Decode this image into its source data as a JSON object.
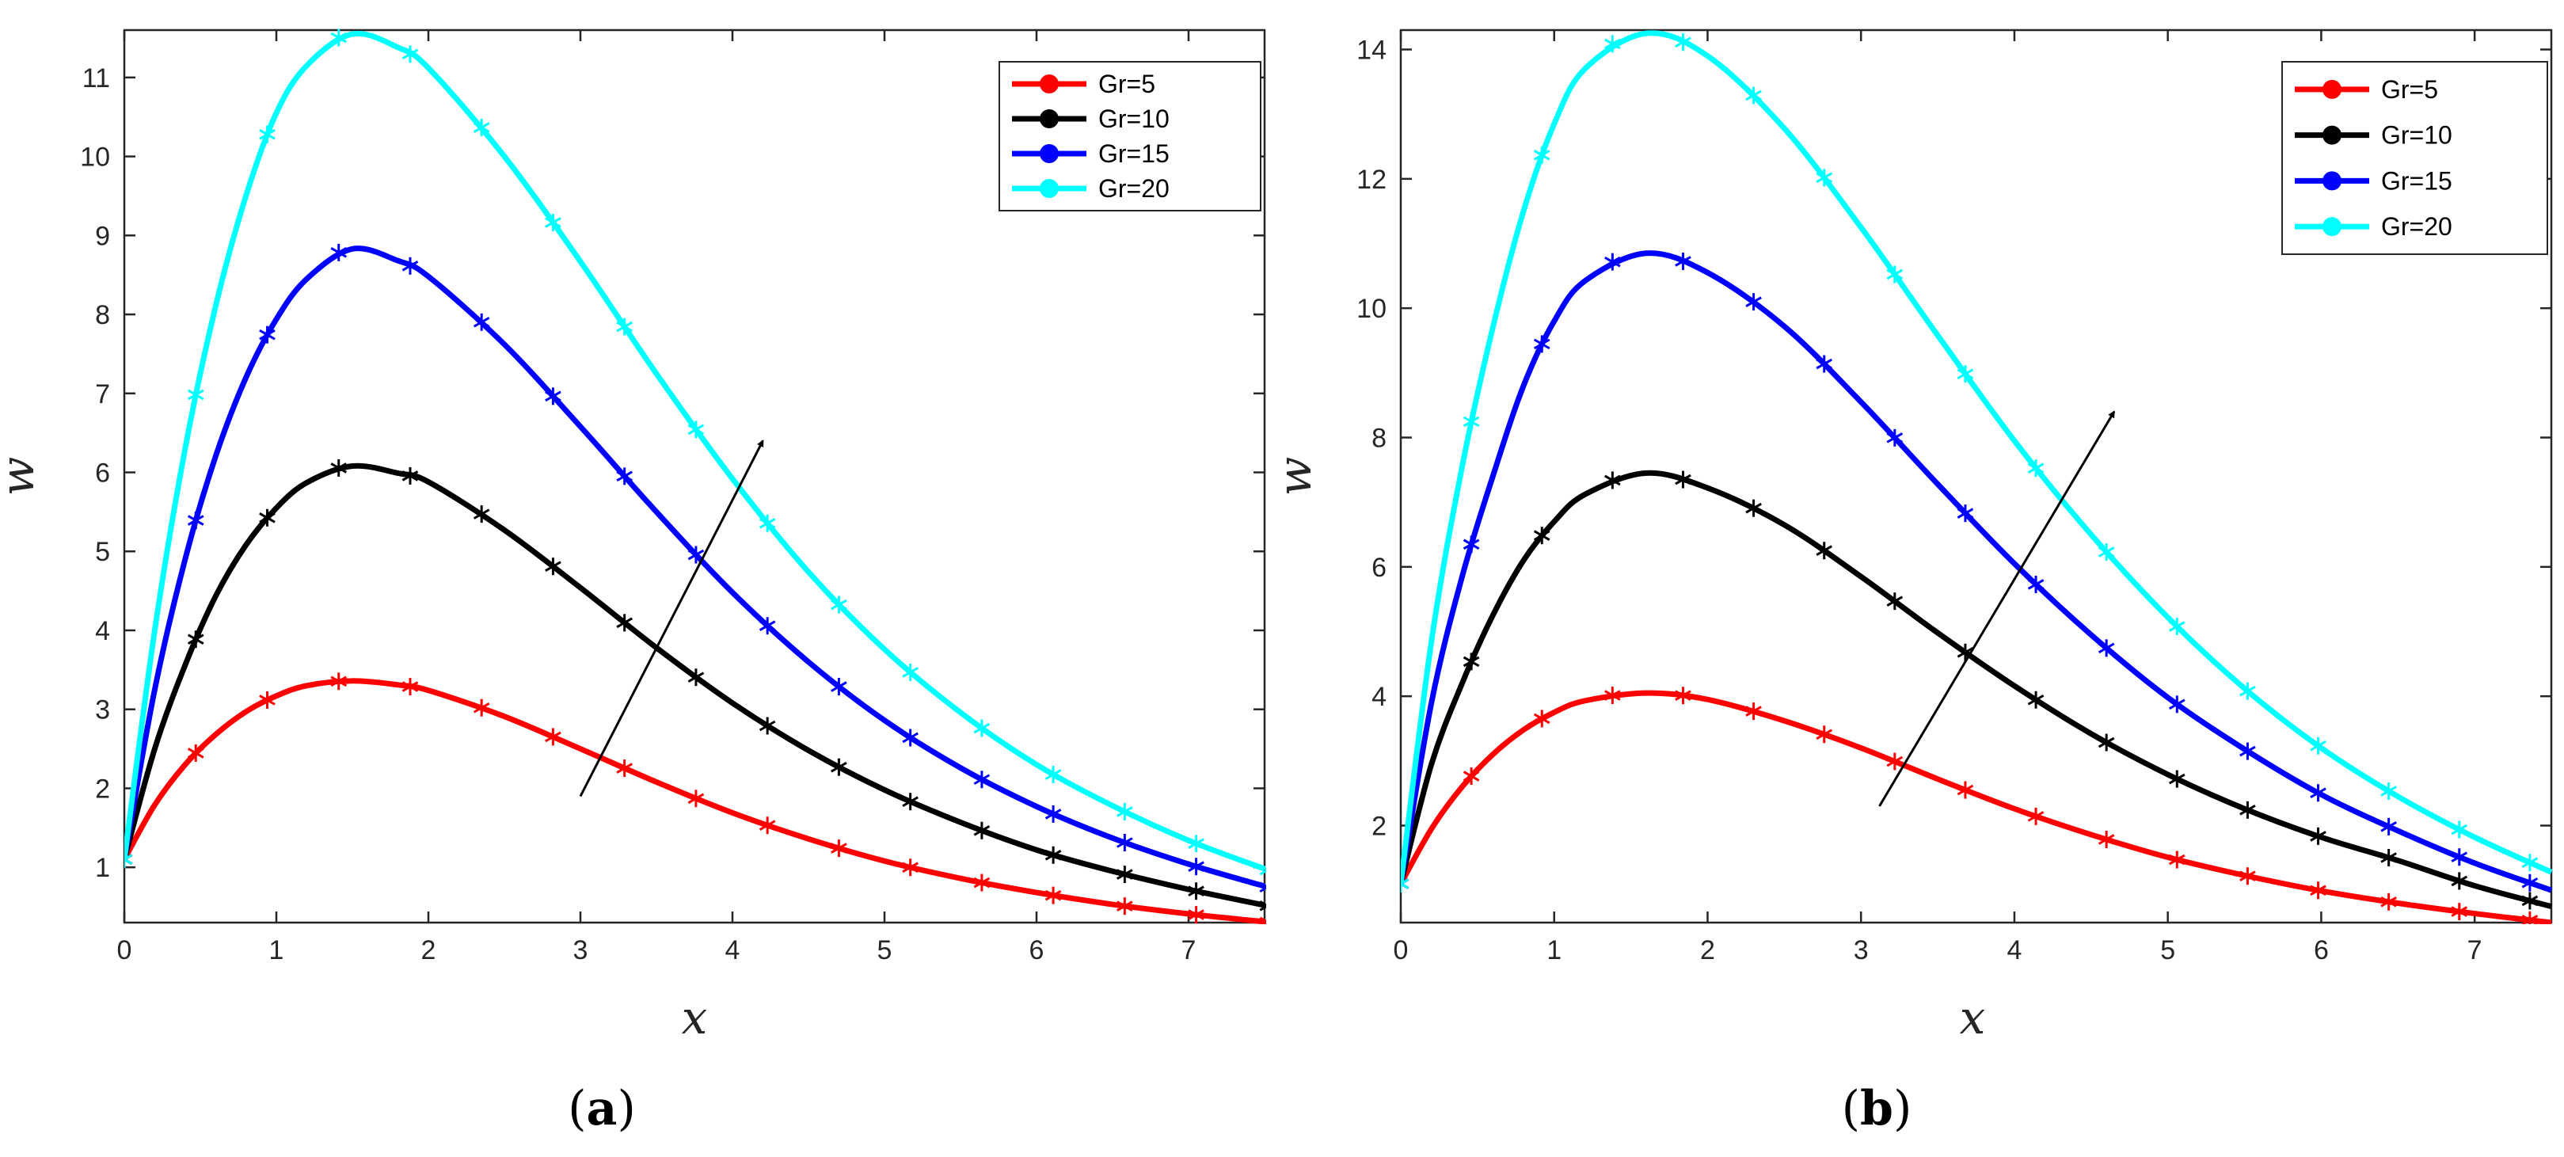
{
  "figure": {
    "panels": [
      {
        "id": "a",
        "label_open": "(",
        "label_letter": "a",
        "label_close": ")",
        "xlabel": "x",
        "ylabel": "w"
      },
      {
        "id": "b",
        "label_open": "(",
        "label_letter": "b",
        "label_close": ")",
        "xlabel": "x",
        "ylabel": "w"
      }
    ]
  },
  "chart_data": [
    {
      "type": "line",
      "panel": "a",
      "title": "",
      "xlabel": "x",
      "ylabel": "w",
      "xlim": [
        0,
        7.5
      ],
      "ylim": [
        0.3,
        11.6
      ],
      "xticks": [
        0,
        1,
        2,
        3,
        4,
        5,
        6,
        7
      ],
      "yticks": [
        1,
        2,
        3,
        4,
        5,
        6,
        7,
        8,
        9,
        10,
        11
      ],
      "grid": false,
      "legend_position": "top-right",
      "marker_x": [
        0,
        0.47,
        0.94,
        1.41,
        1.88,
        2.35,
        2.82,
        3.29,
        3.76,
        4.23,
        4.7,
        5.17,
        5.64,
        6.11,
        6.58,
        7.05,
        7.52
      ],
      "series": [
        {
          "name": "Gr=5",
          "color": "#ff0000",
          "peak_x": 1.48,
          "peak_y": 3.36,
          "x": [
            0,
            0.2,
            0.4,
            0.6,
            0.8,
            1.0,
            1.2,
            1.5,
            1.8,
            2.0,
            2.5,
            3.0,
            3.5,
            4.0,
            4.5,
            5.0,
            5.5,
            6.0,
            6.5,
            7.0,
            7.5
          ],
          "y": [
            1.1,
            1.79,
            2.3,
            2.68,
            2.97,
            3.17,
            3.3,
            3.36,
            3.31,
            3.24,
            2.91,
            2.5,
            2.08,
            1.69,
            1.36,
            1.08,
            0.86,
            0.68,
            0.53,
            0.41,
            0.31
          ]
        },
        {
          "name": "Gr=10",
          "color": "#000000",
          "peak_x": 1.5,
          "peak_y": 6.08,
          "x": [
            0,
            0.2,
            0.4,
            0.6,
            0.8,
            1.0,
            1.2,
            1.5,
            1.8,
            2.0,
            2.5,
            3.0,
            3.5,
            4.0,
            4.5,
            5.0,
            5.5,
            6.0,
            6.5,
            7.0,
            7.5
          ],
          "y": [
            1.1,
            2.5,
            3.56,
            4.43,
            5.08,
            5.55,
            5.87,
            6.08,
            5.99,
            5.88,
            5.27,
            4.54,
            3.78,
            3.08,
            2.48,
            1.98,
            1.57,
            1.22,
            0.95,
            0.72,
            0.52
          ]
        },
        {
          "name": "Gr=15",
          "color": "#0000ff",
          "peak_x": 1.52,
          "peak_y": 8.83,
          "x": [
            0,
            0.2,
            0.4,
            0.6,
            0.8,
            1.0,
            1.2,
            1.5,
            1.8,
            2.0,
            2.5,
            3.0,
            3.5,
            4.0,
            4.5,
            5.0,
            5.5,
            6.0,
            6.5,
            7.0,
            7.5
          ],
          "y": [
            1.1,
            3.25,
            4.9,
            6.2,
            7.2,
            7.94,
            8.45,
            8.83,
            8.68,
            8.48,
            7.62,
            6.58,
            5.5,
            4.48,
            3.6,
            2.86,
            2.26,
            1.77,
            1.37,
            1.04,
            0.76
          ]
        },
        {
          "name": "Gr=20",
          "color": "#00ffff",
          "peak_x": 1.53,
          "peak_y": 11.55,
          "x": [
            0,
            0.2,
            0.4,
            0.6,
            0.8,
            1.0,
            1.2,
            1.5,
            1.8,
            2.0,
            2.5,
            3.0,
            3.5,
            4.0,
            4.5,
            5.0,
            5.5,
            6.0,
            6.5,
            7.0,
            7.5
          ],
          "y": [
            1.1,
            4.0,
            6.3,
            8.1,
            9.5,
            10.55,
            11.15,
            11.55,
            11.38,
            11.12,
            10.0,
            8.67,
            7.25,
            5.92,
            4.74,
            3.76,
            2.96,
            2.3,
            1.78,
            1.34,
            0.98
          ]
        }
      ],
      "annotations": [
        {
          "type": "arrow",
          "from": [
            3.0,
            1.9
          ],
          "to": [
            4.2,
            6.4
          ],
          "color": "#000000"
        }
      ]
    },
    {
      "type": "line",
      "panel": "b",
      "title": "",
      "xlabel": "x",
      "ylabel": "w",
      "xlim": [
        0,
        7.5
      ],
      "ylim": [
        0.5,
        14.3
      ],
      "xticks": [
        0,
        1,
        2,
        3,
        4,
        5,
        6,
        7
      ],
      "yticks": [
        2,
        4,
        6,
        8,
        10,
        12,
        14
      ],
      "grid": false,
      "legend_position": "top-right",
      "marker_x": [
        0,
        0.46,
        0.92,
        1.38,
        1.84,
        2.3,
        2.76,
        3.22,
        3.68,
        4.14,
        4.6,
        5.06,
        5.52,
        5.98,
        6.44,
        6.9,
        7.36
      ],
      "series": [
        {
          "name": "Gr=5",
          "color": "#ff0000",
          "peak_x": 1.6,
          "peak_y": 4.05,
          "x": [
            0,
            0.2,
            0.4,
            0.6,
            0.8,
            1.0,
            1.2,
            1.6,
            2.0,
            2.5,
            3.0,
            3.5,
            4.0,
            4.5,
            5.0,
            5.5,
            6.0,
            6.5,
            7.0,
            7.5
          ],
          "y": [
            1.1,
            1.95,
            2.6,
            3.1,
            3.48,
            3.75,
            3.93,
            4.05,
            3.95,
            3.62,
            3.2,
            2.72,
            2.26,
            1.86,
            1.51,
            1.23,
            0.99,
            0.8,
            0.64,
            0.5
          ]
        },
        {
          "name": "Gr=10",
          "color": "#000000",
          "peak_x": 1.62,
          "peak_y": 7.45,
          "x": [
            0,
            0.2,
            0.4,
            0.6,
            0.8,
            1.0,
            1.2,
            1.6,
            2.0,
            2.5,
            3.0,
            3.5,
            4.0,
            4.5,
            5.0,
            5.5,
            6.0,
            6.5,
            7.0,
            7.5
          ],
          "y": [
            1.1,
            2.95,
            4.2,
            5.25,
            6.1,
            6.7,
            7.12,
            7.45,
            7.22,
            6.65,
            5.85,
            4.98,
            4.16,
            3.42,
            2.79,
            2.26,
            1.82,
            1.46,
            1.07,
            0.75
          ]
        },
        {
          "name": "Gr=15",
          "color": "#0000ff",
          "peak_x": 1.64,
          "peak_y": 10.85,
          "x": [
            0,
            0.2,
            0.4,
            0.6,
            0.8,
            1.0,
            1.2,
            1.6,
            2.0,
            2.5,
            3.0,
            3.5,
            4.0,
            4.5,
            5.0,
            5.5,
            6.0,
            6.5,
            7.0,
            7.5
          ],
          "y": [
            1.1,
            3.9,
            5.85,
            7.4,
            8.8,
            9.8,
            10.42,
            10.85,
            10.55,
            9.72,
            8.55,
            7.28,
            6.05,
            4.95,
            3.98,
            3.18,
            2.48,
            1.92,
            1.42,
            1.0
          ]
        },
        {
          "name": "Gr=20",
          "color": "#00ffff",
          "peak_x": 1.66,
          "peak_y": 14.25,
          "x": [
            0,
            0.2,
            0.4,
            0.6,
            0.8,
            1.0,
            1.2,
            1.6,
            2.0,
            2.5,
            3.0,
            3.5,
            4.0,
            4.5,
            5.0,
            5.5,
            6.0,
            6.5,
            7.0,
            7.5
          ],
          "y": [
            1.1,
            4.85,
            7.55,
            9.7,
            11.5,
            12.85,
            13.7,
            14.25,
            13.9,
            12.78,
            11.25,
            9.58,
            7.95,
            6.5,
            5.22,
            4.12,
            3.2,
            2.45,
            1.82,
            1.28
          ]
        }
      ],
      "annotations": [
        {
          "type": "arrow",
          "from": [
            3.12,
            2.3
          ],
          "to": [
            4.65,
            8.4
          ],
          "color": "#000000"
        }
      ]
    }
  ]
}
